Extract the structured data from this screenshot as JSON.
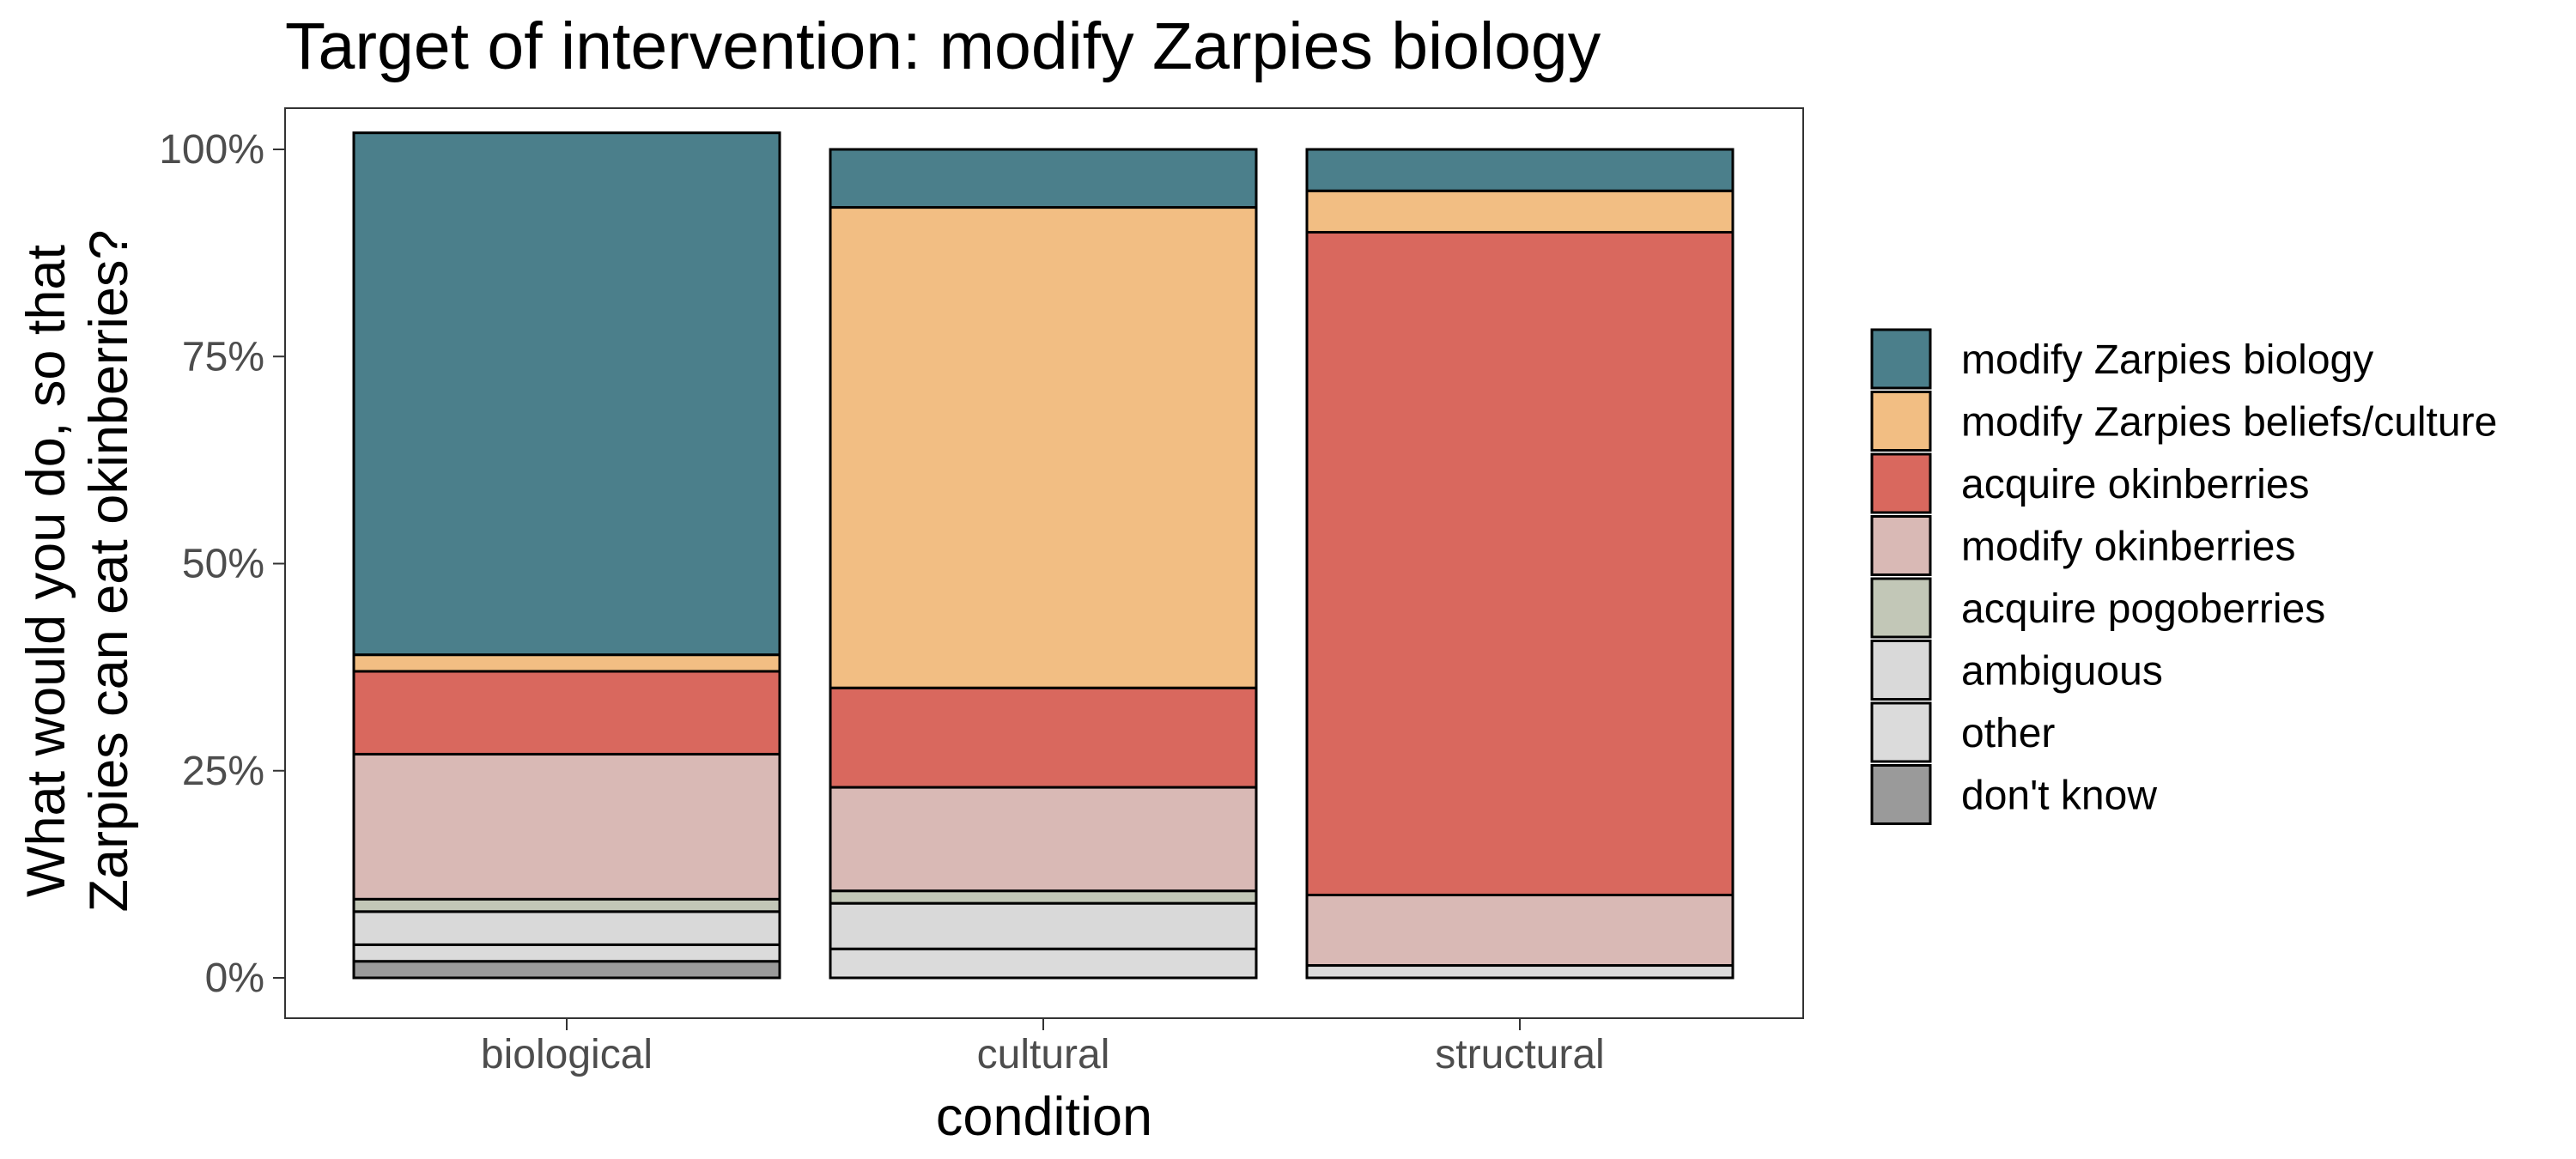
{
  "chart_data": {
    "type": "bar",
    "stacked": true,
    "normalized": true,
    "title": "Target of intervention: modify Zarpies biology",
    "xlabel": "condition",
    "ylabel": [
      "What would you do, so that",
      "Zarpies can eat okinberries?"
    ],
    "categories": [
      "biological",
      "cultural",
      "structural"
    ],
    "ylim": [
      0,
      1
    ],
    "yticks": [
      {
        "value": 0,
        "label": "0%"
      },
      {
        "value": 0.25,
        "label": "25%"
      },
      {
        "value": 0.5,
        "label": "50%"
      },
      {
        "value": 0.75,
        "label": "75%"
      },
      {
        "value": 1,
        "label": "100%"
      }
    ],
    "grid": false,
    "legend_position": "right",
    "series": [
      {
        "name": "modify Zarpies biology",
        "color": "#4b7f8b",
        "values": [
          0.63,
          0.07,
          0.05
        ]
      },
      {
        "name": "modify Zarpies beliefs/culture",
        "color": "#f2be83",
        "values": [
          0.02,
          0.58,
          0.05
        ]
      },
      {
        "name": "acquire okinberries",
        "color": "#d9685e",
        "values": [
          0.1,
          0.12,
          0.8
        ]
      },
      {
        "name": "modify okinberries",
        "color": "#d9b9b5",
        "values": [
          0.175,
          0.125,
          0.085
        ]
      },
      {
        "name": "acquire pogoberries",
        "color": "#c2c7b7",
        "values": [
          0.015,
          0.015,
          0.0
        ]
      },
      {
        "name": "ambiguous",
        "color": "#d9d9d9",
        "values": [
          0.04,
          0.055,
          0.0
        ]
      },
      {
        "name": "other",
        "color": "#dbdbdb",
        "values": [
          0.02,
          0.035,
          0.015
        ]
      },
      {
        "name": "don't know",
        "color": "#9a9a9a",
        "values": [
          0.02,
          0.0,
          0.0
        ]
      }
    ]
  }
}
